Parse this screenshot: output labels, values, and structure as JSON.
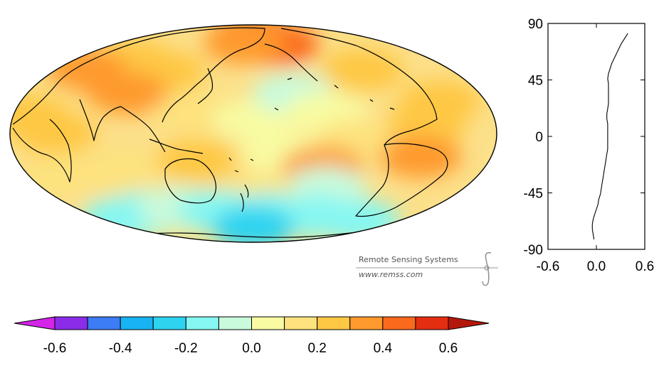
{
  "credit": {
    "org": "Remote Sensing Systems",
    "url": "www.remss.com"
  },
  "colorbar": {
    "tick_labels": [
      "-0.6",
      "-0.4",
      "-0.2",
      "0.0",
      "0.2",
      "0.4",
      "0.6"
    ],
    "tick_values": [
      -0.6,
      -0.4,
      -0.2,
      0.0,
      0.2,
      0.4,
      0.6
    ],
    "bin_edges": [
      -0.6,
      -0.5,
      -0.4,
      -0.3,
      -0.2,
      -0.1,
      0.0,
      0.1,
      0.2,
      0.3,
      0.4,
      0.5,
      0.6
    ],
    "colors": [
      "#8a2ce8",
      "#3d7cf5",
      "#17b3f2",
      "#2ed3f0",
      "#86f7f2",
      "#c9fadb",
      "#f8fba2",
      "#fde27e",
      "#fec845",
      "#fe9a2e",
      "#fb6a1c",
      "#e42e12"
    ],
    "under_color": "#d324e8",
    "over_color": "#b4180b"
  },
  "map": {
    "projection": "hammer-aitoff",
    "center_longitude": 180,
    "anomaly_blobs": [
      {
        "lon": 180,
        "lat": 80,
        "value": 0.45
      },
      {
        "lon": 200,
        "lat": 75,
        "value": 0.45
      },
      {
        "lon": 220,
        "lat": 70,
        "value": 0.4
      },
      {
        "lon": 165,
        "lat": 72,
        "value": 0.35
      },
      {
        "lon": 60,
        "lat": 50,
        "value": 0.25
      },
      {
        "lon": 30,
        "lat": 40,
        "value": 0.3
      },
      {
        "lon": 100,
        "lat": 45,
        "value": 0.25
      },
      {
        "lon": 85,
        "lat": 28,
        "value": 0.3
      },
      {
        "lon": 280,
        "lat": 45,
        "value": 0.25
      },
      {
        "lon": 320,
        "lat": 20,
        "value": 0.28
      },
      {
        "lon": 300,
        "lat": 5,
        "value": 0.22
      },
      {
        "lon": 15,
        "lat": 10,
        "value": 0.22
      },
      {
        "lon": 40,
        "lat": 0,
        "value": 0.2
      },
      {
        "lon": 140,
        "lat": 15,
        "value": 0.15
      },
      {
        "lon": 180,
        "lat": 10,
        "value": 0.05
      },
      {
        "lon": 210,
        "lat": 30,
        "value": -0.1
      },
      {
        "lon": 230,
        "lat": 15,
        "value": 0.05
      },
      {
        "lon": 250,
        "lat": -5,
        "value": 0.12
      },
      {
        "lon": 200,
        "lat": -15,
        "value": 0.0
      },
      {
        "lon": 230,
        "lat": -25,
        "value": 0.3
      },
      {
        "lon": 240,
        "lat": -40,
        "value": -0.05
      },
      {
        "lon": 300,
        "lat": -15,
        "value": 0.35
      },
      {
        "lon": 140,
        "lat": -20,
        "value": 0.25
      },
      {
        "lon": 80,
        "lat": -25,
        "value": 0.15
      },
      {
        "lon": 30,
        "lat": -25,
        "value": 0.18
      },
      {
        "lon": 180,
        "lat": -45,
        "value": 0.12
      },
      {
        "lon": 20,
        "lat": -55,
        "value": -0.12
      },
      {
        "lon": 60,
        "lat": -55,
        "value": -0.15
      },
      {
        "lon": 100,
        "lat": -55,
        "value": -0.05
      },
      {
        "lon": 140,
        "lat": -60,
        "value": -0.18
      },
      {
        "lon": 200,
        "lat": -62,
        "value": -0.15
      },
      {
        "lon": 260,
        "lat": -62,
        "value": -0.2
      },
      {
        "lon": 320,
        "lat": -60,
        "value": -0.15
      },
      {
        "lon": 180,
        "lat": -75,
        "value": -0.22
      }
    ]
  },
  "chart_data": {
    "type": "line",
    "title": "",
    "xlabel": "",
    "ylabel": "",
    "x_tick_labels": [
      "-0.6",
      "0.0",
      "0.6"
    ],
    "y_tick_labels": [
      "90",
      "45",
      "0",
      "-45",
      "-90"
    ],
    "xlim": [
      -0.6,
      0.6
    ],
    "ylim": [
      -90,
      90
    ],
    "series": [
      {
        "latitude": [
          -82,
          -78,
          -74,
          -70,
          -66,
          -62,
          -58,
          -54,
          -50,
          -46,
          -42,
          -38,
          -34,
          -30,
          -26,
          -22,
          -18,
          -14,
          -10,
          -6,
          -2,
          2,
          6,
          10,
          14,
          18,
          22,
          26,
          30,
          34,
          38,
          42,
          46,
          50,
          54,
          58,
          62,
          66,
          70,
          74,
          78,
          82
        ],
        "anomaly": [
          -0.03,
          -0.04,
          -0.05,
          -0.05,
          -0.04,
          -0.02,
          0.0,
          0.02,
          0.03,
          0.05,
          0.06,
          0.07,
          0.08,
          0.09,
          0.1,
          0.11,
          0.12,
          0.13,
          0.14,
          0.14,
          0.14,
          0.14,
          0.14,
          0.14,
          0.13,
          0.13,
          0.14,
          0.15,
          0.15,
          0.15,
          0.15,
          0.15,
          0.14,
          0.15,
          0.17,
          0.19,
          0.22,
          0.25,
          0.28,
          0.31,
          0.35,
          0.39
        ]
      }
    ]
  }
}
